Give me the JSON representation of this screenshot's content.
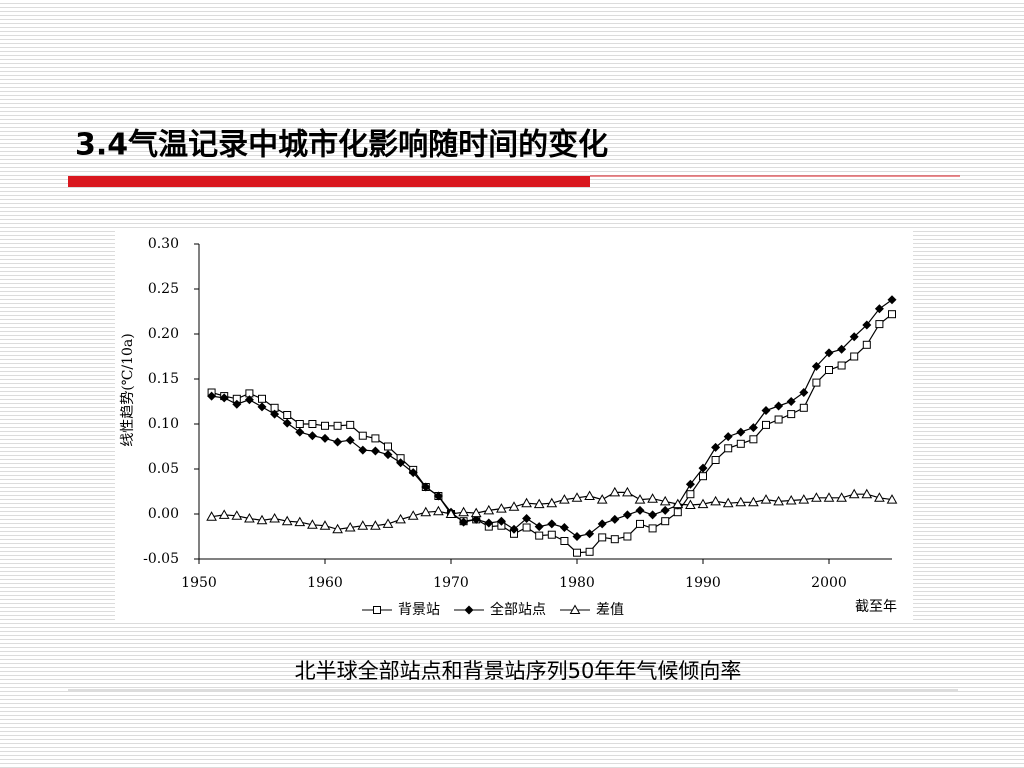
{
  "slide_title": "3.4气温记录中城市化影响随时间的变化",
  "caption": "北半球全部站点和背景站序列50年年气候倾向率",
  "chart_data": {
    "type": "line",
    "y_label": "线性趋势(℃/10a)",
    "x_label": "截至年",
    "x": [
      1951,
      1952,
      1953,
      1954,
      1955,
      1956,
      1957,
      1958,
      1959,
      1960,
      1961,
      1962,
      1963,
      1964,
      1965,
      1966,
      1967,
      1968,
      1969,
      1970,
      1971,
      1972,
      1973,
      1974,
      1975,
      1976,
      1977,
      1978,
      1979,
      1980,
      1981,
      1982,
      1983,
      1984,
      1985,
      1986,
      1987,
      1988,
      1989,
      1990,
      1991,
      1992,
      1993,
      1994,
      1995,
      1996,
      1997,
      1998,
      1999,
      2000,
      2001,
      2002,
      2003,
      2004,
      2005
    ],
    "series": [
      {
        "name": "背景站",
        "color": "#000000",
        "marker": "square",
        "values": [
          0.135,
          0.131,
          0.128,
          0.134,
          0.128,
          0.118,
          0.11,
          0.1,
          0.1,
          0.098,
          0.098,
          0.099,
          0.087,
          0.084,
          0.075,
          0.062,
          0.049,
          0.03,
          0.02,
          0.0,
          -0.008,
          -0.006,
          -0.014,
          -0.013,
          -0.022,
          -0.015,
          -0.024,
          -0.023,
          -0.03,
          -0.043,
          -0.042,
          -0.026,
          -0.028,
          -0.025,
          -0.011,
          -0.016,
          -0.008,
          0.002,
          0.022,
          0.042,
          0.06,
          0.073,
          0.078,
          0.083,
          0.099,
          0.105,
          0.111,
          0.118,
          0.146,
          0.16,
          0.165,
          0.175,
          0.188,
          0.211,
          0.222
        ]
      },
      {
        "name": "全部站点",
        "color": "#000000",
        "marker": "diamond",
        "values": [
          0.131,
          0.129,
          0.122,
          0.127,
          0.119,
          0.111,
          0.101,
          0.091,
          0.087,
          0.084,
          0.08,
          0.082,
          0.071,
          0.07,
          0.066,
          0.057,
          0.046,
          0.03,
          0.02,
          0.002,
          -0.009,
          -0.006,
          -0.01,
          -0.008,
          -0.017,
          -0.005,
          -0.014,
          -0.011,
          -0.015,
          -0.025,
          -0.022,
          -0.011,
          -0.006,
          -0.001,
          0.004,
          -0.001,
          0.004,
          0.01,
          0.033,
          0.051,
          0.074,
          0.086,
          0.091,
          0.096,
          0.115,
          0.12,
          0.125,
          0.135,
          0.164,
          0.179,
          0.183,
          0.197,
          0.21,
          0.228,
          0.238
        ]
      },
      {
        "name": "差值",
        "color": "#000000",
        "marker": "triangle",
        "values": [
          -0.003,
          -0.001,
          -0.002,
          -0.005,
          -0.007,
          -0.005,
          -0.008,
          -0.009,
          -0.012,
          -0.013,
          -0.017,
          -0.015,
          -0.013,
          -0.013,
          -0.011,
          -0.006,
          -0.002,
          0.002,
          0.003,
          0.0,
          0.002,
          0.001,
          0.004,
          0.006,
          0.008,
          0.012,
          0.011,
          0.012,
          0.016,
          0.018,
          0.02,
          0.016,
          0.024,
          0.024,
          0.016,
          0.017,
          0.014,
          0.011,
          0.01,
          0.011,
          0.014,
          0.012,
          0.013,
          0.013,
          0.016,
          0.014,
          0.015,
          0.016,
          0.018,
          0.018,
          0.018,
          0.022,
          0.022,
          0.018,
          0.016
        ]
      }
    ],
    "xlim": [
      1950,
      2005
    ],
    "xticks": [
      1950,
      1960,
      1970,
      1980,
      1990,
      2000
    ],
    "ylim": [
      -0.05,
      0.3
    ],
    "yticks": [
      {
        "value": -0.05,
        "label": "-0.05"
      },
      {
        "value": 0,
        "label": "0.00"
      },
      {
        "value": 0.05,
        "label": "0.05"
      },
      {
        "value": 0.1,
        "label": "0.10"
      },
      {
        "value": 0.15,
        "label": "0.15"
      },
      {
        "value": 0.2,
        "label": "0.20"
      },
      {
        "value": 0.25,
        "label": "0.25"
      },
      {
        "value": 0.3,
        "label": "0.30"
      }
    ],
    "legend": "bottom"
  }
}
